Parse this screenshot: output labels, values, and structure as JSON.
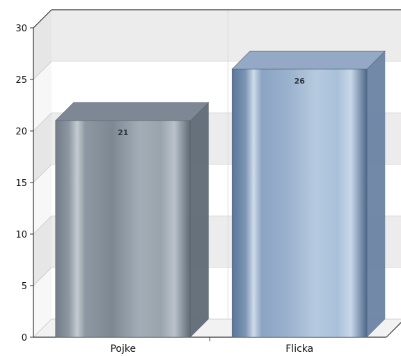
{
  "chart_data": {
    "type": "bar",
    "style": "3d-cylinder-gradient",
    "categories": [
      "Pojke",
      "Flicka"
    ],
    "values": [
      21,
      26
    ],
    "data_labels": [
      "21",
      "26"
    ],
    "bar_colors": [
      "#8a95a0",
      "#9fb7d4"
    ],
    "ylim": [
      0,
      30
    ],
    "yticks": [
      "0",
      "5",
      "10",
      "15",
      "20",
      "25",
      "30"
    ],
    "grid": true,
    "legend": "none",
    "title": "",
    "xlabel": "",
    "ylabel": ""
  }
}
